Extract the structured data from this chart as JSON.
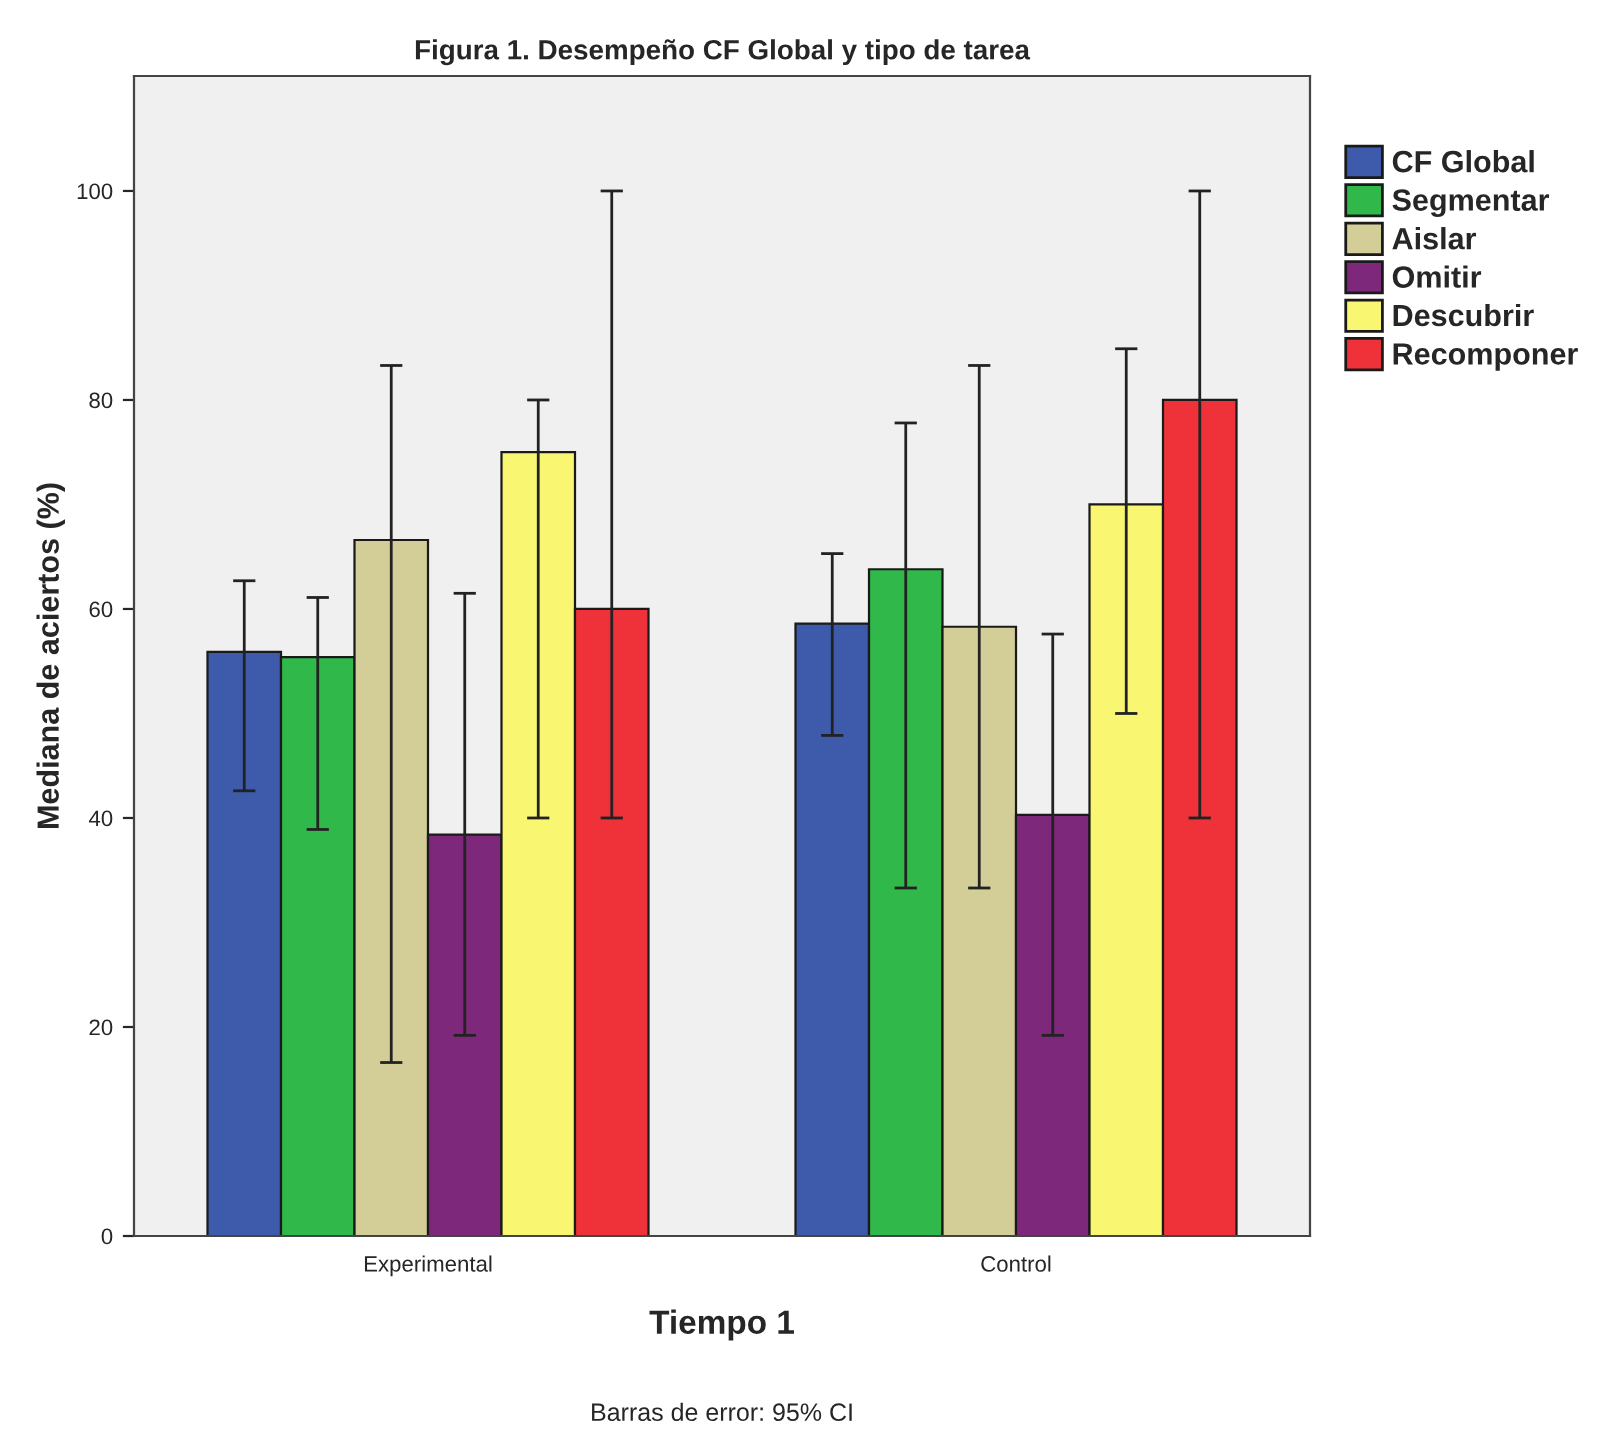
{
  "chart_data": {
    "type": "bar",
    "title": "Figura 1. Desempeño CF Global y tipo de tarea",
    "xlabel": "Tiempo 1",
    "ylabel": "Mediana de aciertos (%)",
    "categories": [
      "Experimental",
      "Control"
    ],
    "series": [
      {
        "name": "CF Global",
        "color": "#3d5aab",
        "values": [
          55.9,
          58.6
        ],
        "errors": [
          [
            42.6,
            62.7
          ],
          [
            47.9,
            65.3
          ]
        ]
      },
      {
        "name": "Segmentar",
        "color": "#31b84a",
        "values": [
          55.4,
          63.8
        ],
        "errors": [
          [
            38.9,
            61.1
          ],
          [
            33.3,
            77.8
          ]
        ]
      },
      {
        "name": "Aislar",
        "color": "#d3ce98",
        "values": [
          66.6,
          58.3
        ],
        "errors": [
          [
            16.6,
            83.3
          ],
          [
            33.3,
            83.3
          ]
        ]
      },
      {
        "name": "Omitir",
        "color": "#7d287b",
        "values": [
          38.4,
          40.3
        ],
        "errors": [
          [
            19.2,
            61.5
          ],
          [
            19.2,
            57.6
          ]
        ]
      },
      {
        "name": "Descubrir",
        "color": "#f9f672",
        "values": [
          75.0,
          70.0
        ],
        "errors": [
          [
            40,
            80
          ],
          [
            50,
            84.9
          ]
        ]
      },
      {
        "name": "Recomponer",
        "color": "#ef3239",
        "values": [
          60,
          80
        ],
        "errors": [
          [
            40,
            100
          ],
          [
            40,
            100
          ]
        ]
      }
    ],
    "ylim": [
      0,
      111
    ],
    "yticks": [
      0,
      20,
      40,
      60,
      80,
      100
    ],
    "grid": false,
    "legend": "right",
    "annotations": [
      "Barras de error: 95% CI"
    ]
  }
}
